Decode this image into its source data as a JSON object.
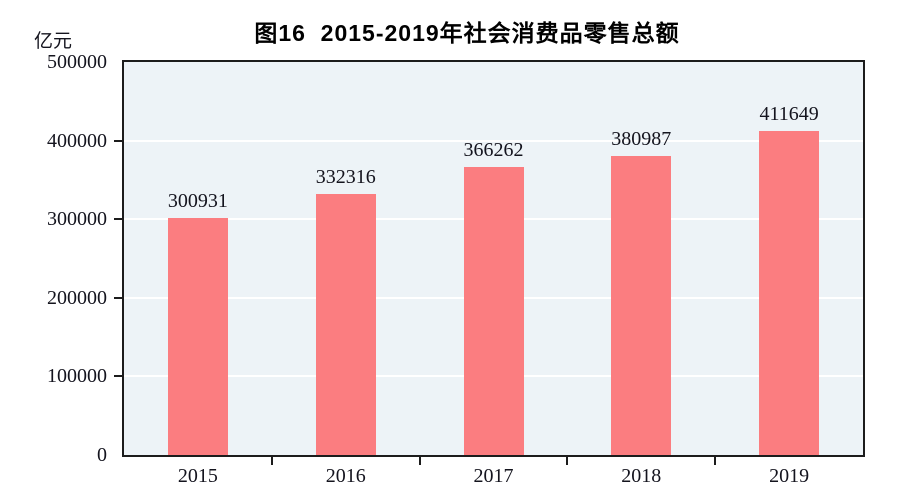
{
  "chart_data": {
    "type": "bar",
    "title": "图16  2015-2019年社会消费品零售总额",
    "unit": "亿元",
    "categories": [
      "2015",
      "2016",
      "2017",
      "2018",
      "2019"
    ],
    "values": [
      300931,
      332316,
      366262,
      380987,
      411649
    ],
    "value_labels_shown": true,
    "xlabel": "",
    "ylabel": "亿元",
    "ylim": [
      0,
      500000
    ],
    "yticks": [
      0,
      100000,
      200000,
      300000,
      400000,
      500000
    ],
    "legend": "none",
    "grid": "horizontal",
    "colors": {
      "bar": "#FB7D80",
      "plot_bg": "#EDF3F7",
      "gridline": "#FFFFFF",
      "axis": "#1C1C1C",
      "text": "#14141E",
      "title": "#000000"
    }
  }
}
